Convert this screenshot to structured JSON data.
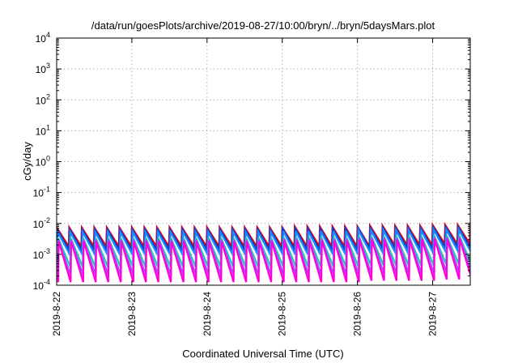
{
  "chart_data": {
    "type": "line",
    "title": "/data/run/goesPlots/archive/2019-08-27/10:00/bryn/../bryn/5daysMars.plot",
    "xlabel": "Coordinated Universal Time (UTC)",
    "ylabel": "cGy/day",
    "yscale": "log",
    "ylim": [
      0.0001,
      10000
    ],
    "xlim": [
      "2019-08-22",
      "2019-08-27T12:00"
    ],
    "grid": true,
    "x_ticks": [
      "2019-8-22",
      "2019-8-23",
      "2019-8-24",
      "2019-8-25",
      "2019-8-26",
      "2019-8-27"
    ],
    "y_ticks": [
      {
        "base": "10",
        "exp": "-4"
      },
      {
        "base": "10",
        "exp": "-3"
      },
      {
        "base": "10",
        "exp": "-2"
      },
      {
        "base": "10",
        "exp": "-1"
      },
      {
        "base": "10",
        "exp": "0"
      },
      {
        "base": "10",
        "exp": "1"
      },
      {
        "base": "10",
        "exp": "2"
      },
      {
        "base": "10",
        "exp": "3"
      },
      {
        "base": "10",
        "exp": "4"
      }
    ],
    "sawtooth": {
      "cycles_per_day": 6,
      "day_peaks": [
        0.0075,
        0.0075,
        0.0075,
        0.008,
        0.0085,
        0.009,
        0.0105
      ],
      "day_troughs": [
        0.0018,
        0.0018,
        0.0018,
        0.0018,
        0.002,
        0.0022,
        0.0025
      ]
    },
    "series": [
      {
        "color": "#e8000b",
        "peak_factor": 1.0,
        "trough_factor": 1.0,
        "phase": 0.0
      },
      {
        "color": "#0a3fd6",
        "peak_factor": 0.85,
        "trough_factor": 0.75,
        "phase": 0.04
      },
      {
        "color": "#1a8cff",
        "peak_factor": 0.7,
        "trough_factor": 0.55,
        "phase": 0.08
      },
      {
        "color": "#1fc9b0",
        "peak_factor": 0.45,
        "trough_factor": 0.22,
        "phase": 0.12
      },
      {
        "color": "#a64dff",
        "peak_factor": 0.4,
        "trough_factor": 0.12,
        "phase": 0.14
      },
      {
        "color": "#ff00dd",
        "peak_factor": 0.35,
        "trough_factor": 0.07,
        "phase": 0.16
      }
    ]
  }
}
